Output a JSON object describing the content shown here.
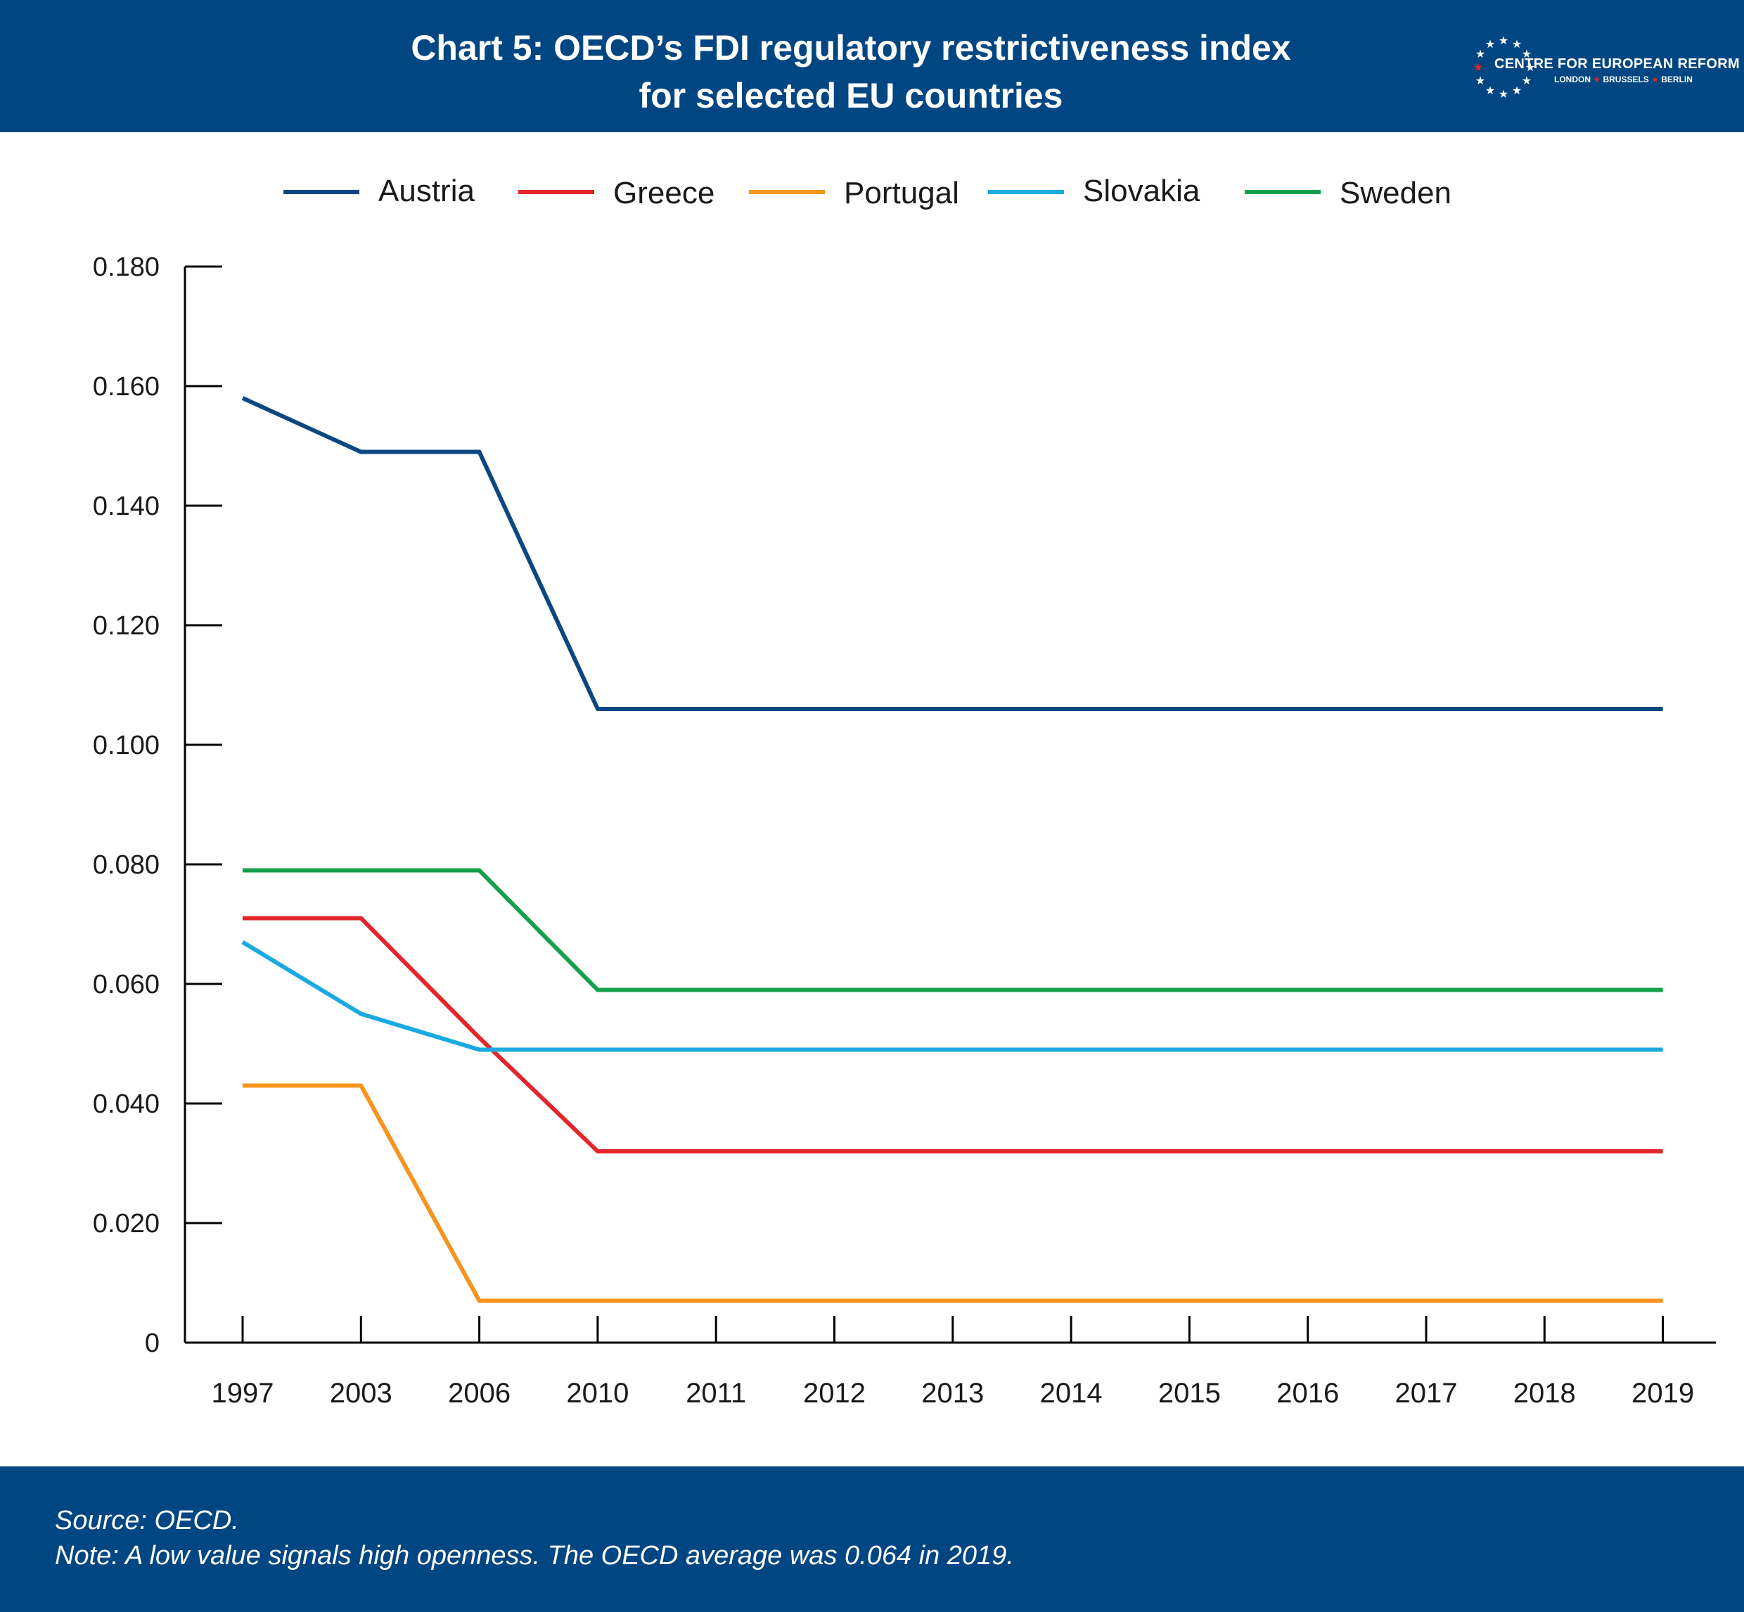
{
  "header": {
    "title_line1": "Chart 5: OECD’s FDI regulatory restrictiveness index",
    "title_line2": "for selected EU countries",
    "logo_name": "CENTRE FOR EUROPEAN REFORM",
    "logo_cities": [
      "LONDON",
      "BRUSSELS",
      "BERLIN"
    ]
  },
  "colors": {
    "header_bg": "#004682",
    "Austria": "#0b4780",
    "Greece": "#e3262c",
    "Portugal": "#f7941d",
    "Slovakia": "#1aa9e1",
    "Sweden": "#14a04a"
  },
  "chart_data": {
    "type": "line",
    "legend_position": "top",
    "grid": false,
    "ylim": [
      0,
      0.18
    ],
    "yticks": [
      "0",
      "0.020",
      "0.040",
      "0.060",
      "0.080",
      "0.100",
      "0.120",
      "0.140",
      "0.160",
      "0.180"
    ],
    "ytick_values": [
      0,
      0.02,
      0.04,
      0.06,
      0.08,
      0.1,
      0.12,
      0.14,
      0.16,
      0.18
    ],
    "categories": [
      "1997",
      "2003",
      "2006",
      "2010",
      "2011",
      "2012",
      "2013",
      "2014",
      "2015",
      "2016",
      "2017",
      "2018",
      "2019"
    ],
    "series": [
      {
        "name": "Austria",
        "values": [
          0.158,
          0.149,
          0.149,
          0.106,
          0.106,
          0.106,
          0.106,
          0.106,
          0.106,
          0.106,
          0.106,
          0.106,
          0.106
        ]
      },
      {
        "name": "Greece",
        "values": [
          0.071,
          0.071,
          0.051,
          0.032,
          0.032,
          0.032,
          0.032,
          0.032,
          0.032,
          0.032,
          0.032,
          0.032,
          0.032
        ]
      },
      {
        "name": "Portugal",
        "values": [
          0.043,
          0.043,
          0.007,
          0.007,
          0.007,
          0.007,
          0.007,
          0.007,
          0.007,
          0.007,
          0.007,
          0.007,
          0.007
        ]
      },
      {
        "name": "Slovakia",
        "values": [
          0.067,
          0.055,
          0.049,
          0.049,
          0.049,
          0.049,
          0.049,
          0.049,
          0.049,
          0.049,
          0.049,
          0.049,
          0.049
        ]
      },
      {
        "name": "Sweden",
        "values": [
          0.079,
          0.079,
          0.079,
          0.059,
          0.059,
          0.059,
          0.059,
          0.059,
          0.059,
          0.059,
          0.059,
          0.059,
          0.059
        ]
      }
    ]
  },
  "footer": {
    "source": "Source: OECD.",
    "note": "Note: A low value signals high openness. The OECD average was 0.064 in 2019."
  }
}
